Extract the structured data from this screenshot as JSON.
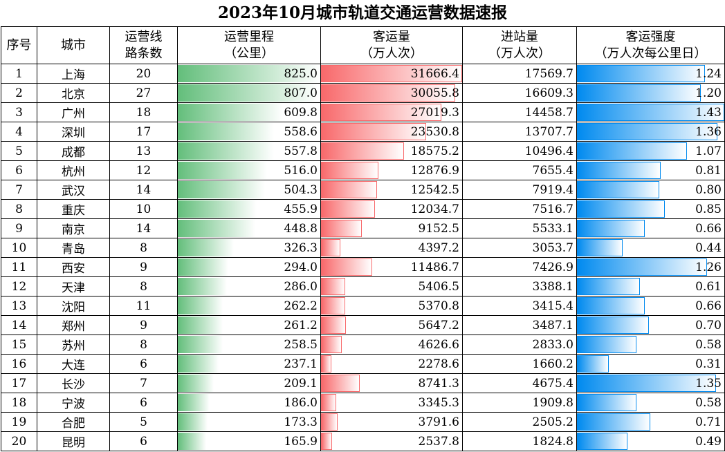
{
  "title": "2023年10月城市轨道交通运营数据速报",
  "headers": {
    "idx": "序号",
    "city": "城市",
    "lines": [
      "运营线",
      "路条数"
    ],
    "length": [
      "运营里程",
      "（公里）"
    ],
    "ridership": [
      "客运量",
      "（万人次）"
    ],
    "entries": [
      "进站量",
      "（万人次）"
    ],
    "intensity": [
      "客运强度",
      "（万人次每公里日）"
    ]
  },
  "colors": {
    "length_bar": "#63be7b",
    "ridership_bar": "#f8696b",
    "intensity_bar": "#008aef"
  },
  "scales": {
    "length_max": 825.0,
    "ridership_max": 31666.4,
    "intensity_max": 1.43
  },
  "rows": [
    {
      "idx": "1",
      "city": "上海",
      "lines": "20",
      "length": "825.0",
      "ridership": "31666.4",
      "entries": "17569.7",
      "intensity": "1.24"
    },
    {
      "idx": "2",
      "city": "北京",
      "lines": "27",
      "length": "807.0",
      "ridership": "30055.8",
      "entries": "16609.3",
      "intensity": "1.20"
    },
    {
      "idx": "3",
      "city": "广州",
      "lines": "18",
      "length": "609.8",
      "ridership": "27019.3",
      "entries": "14458.7",
      "intensity": "1.43"
    },
    {
      "idx": "4",
      "city": "深圳",
      "lines": "17",
      "length": "558.6",
      "ridership": "23530.8",
      "entries": "13707.7",
      "intensity": "1.36"
    },
    {
      "idx": "5",
      "city": "成都",
      "lines": "13",
      "length": "557.8",
      "ridership": "18575.2",
      "entries": "10496.4",
      "intensity": "1.07"
    },
    {
      "idx": "6",
      "city": "杭州",
      "lines": "12",
      "length": "516.0",
      "ridership": "12876.9",
      "entries": "7655.4",
      "intensity": "0.81"
    },
    {
      "idx": "7",
      "city": "武汉",
      "lines": "14",
      "length": "504.3",
      "ridership": "12542.5",
      "entries": "7919.4",
      "intensity": "0.80"
    },
    {
      "idx": "8",
      "city": "重庆",
      "lines": "10",
      "length": "455.9",
      "ridership": "12034.7",
      "entries": "7516.7",
      "intensity": "0.85"
    },
    {
      "idx": "9",
      "city": "南京",
      "lines": "14",
      "length": "448.8",
      "ridership": "9152.5",
      "entries": "5533.1",
      "intensity": "0.66"
    },
    {
      "idx": "10",
      "city": "青岛",
      "lines": "8",
      "length": "326.3",
      "ridership": "4397.2",
      "entries": "3053.7",
      "intensity": "0.44"
    },
    {
      "idx": "11",
      "city": "西安",
      "lines": "9",
      "length": "294.0",
      "ridership": "11486.7",
      "entries": "7426.9",
      "intensity": "1.26"
    },
    {
      "idx": "12",
      "city": "天津",
      "lines": "8",
      "length": "286.0",
      "ridership": "5406.5",
      "entries": "3388.1",
      "intensity": "0.61"
    },
    {
      "idx": "13",
      "city": "沈阳",
      "lines": "11",
      "length": "262.2",
      "ridership": "5370.8",
      "entries": "3415.4",
      "intensity": "0.66"
    },
    {
      "idx": "14",
      "city": "郑州",
      "lines": "9",
      "length": "261.2",
      "ridership": "5647.2",
      "entries": "3487.1",
      "intensity": "0.70"
    },
    {
      "idx": "15",
      "city": "苏州",
      "lines": "8",
      "length": "258.5",
      "ridership": "4626.6",
      "entries": "2833.0",
      "intensity": "0.58"
    },
    {
      "idx": "16",
      "city": "大连",
      "lines": "6",
      "length": "237.1",
      "ridership": "2278.6",
      "entries": "1660.2",
      "intensity": "0.31"
    },
    {
      "idx": "17",
      "city": "长沙",
      "lines": "7",
      "length": "209.1",
      "ridership": "8741.3",
      "entries": "4675.4",
      "intensity": "1.35"
    },
    {
      "idx": "18",
      "city": "宁波",
      "lines": "6",
      "length": "186.0",
      "ridership": "3345.3",
      "entries": "1909.8",
      "intensity": "0.58"
    },
    {
      "idx": "19",
      "city": "合肥",
      "lines": "5",
      "length": "173.3",
      "ridership": "3791.6",
      "entries": "2505.2",
      "intensity": "0.71"
    },
    {
      "idx": "20",
      "city": "昆明",
      "lines": "6",
      "length": "165.9",
      "ridership": "2537.8",
      "entries": "1824.8",
      "intensity": "0.49"
    }
  ]
}
